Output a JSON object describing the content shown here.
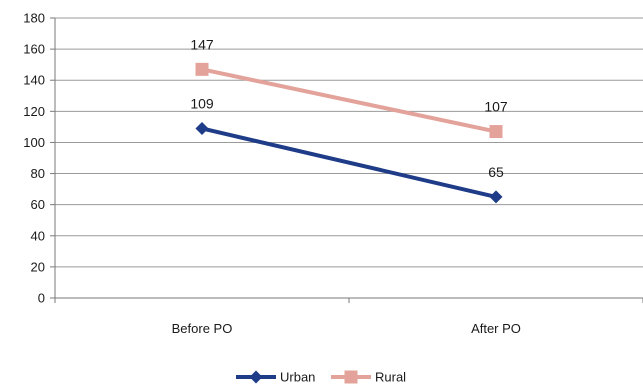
{
  "chart_data": {
    "type": "line",
    "categories": [
      "Before PO",
      "After PO"
    ],
    "series": [
      {
        "name": "Urban",
        "values": [
          109,
          65
        ],
        "color": "#1f3c88",
        "marker": "diamond"
      },
      {
        "name": "Rural",
        "values": [
          147,
          107
        ],
        "color": "#e3a39a",
        "marker": "square"
      }
    ],
    "ylim": [
      0,
      180
    ],
    "yticks": [
      0,
      20,
      40,
      60,
      80,
      100,
      120,
      140,
      160,
      180
    ],
    "grid": true,
    "legend_position": "bottom"
  }
}
